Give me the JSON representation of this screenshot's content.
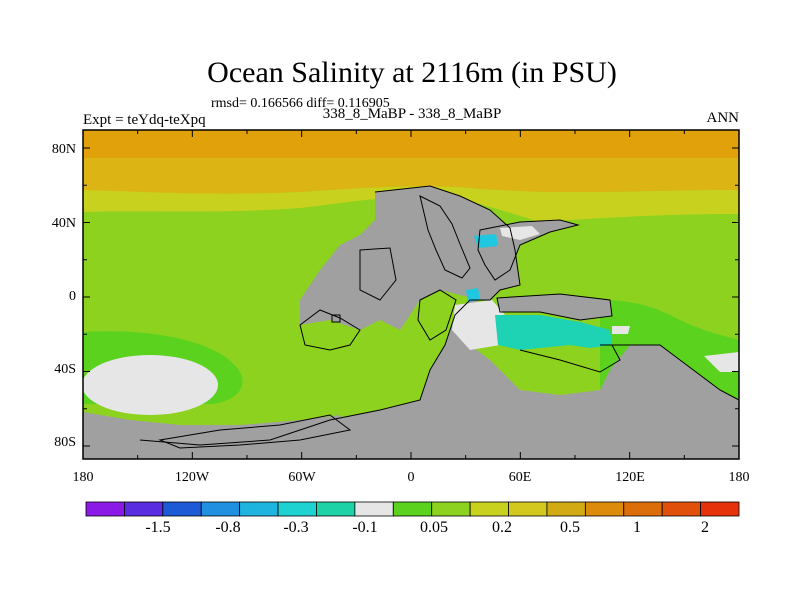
{
  "title": "Ocean Salinity at 2116m (in PSU)",
  "stats": "rmsd= 0.166566 diff= 0.116905",
  "experiment": "Expt = teYdq-teXpq",
  "comparison": "338_8_MaBP - 338_8_MaBP",
  "season": "ANN",
  "lat_labels": [
    "80N",
    "40N",
    "0",
    "40S",
    "80S"
  ],
  "lon_labels": [
    "180",
    "120W",
    "60W",
    "0",
    "60E",
    "120E",
    "180"
  ],
  "colorbar": {
    "labels": [
      "-1.5",
      "-0.8",
      "-0.3",
      "-0.1",
      "0.05",
      "0.2",
      "0.5",
      "1",
      "2"
    ],
    "colors": [
      "#8c1ae6",
      "#5a2ee0",
      "#1e5ad6",
      "#1f8fe0",
      "#1fb4e0",
      "#1fd2d2",
      "#1ed2a8",
      "#e6e6e6",
      "#5ad21e",
      "#8cd21e",
      "#c8d21e",
      "#d2c81e",
      "#d2aa14",
      "#dc8c0a",
      "#dc6e0a",
      "#e0500a",
      "#e6320a"
    ]
  },
  "colors": {
    "land": "#a0a0a0",
    "band_north": "#e0a10a",
    "band_north2": "#dcb414",
    "band_mid": "#c8d21e",
    "ocean": "#8cd21e",
    "ocean_green": "#5ad21e",
    "neutral": "#e6e6e6",
    "teal": "#1ed2b4",
    "cyan": "#1fc8e0"
  }
}
